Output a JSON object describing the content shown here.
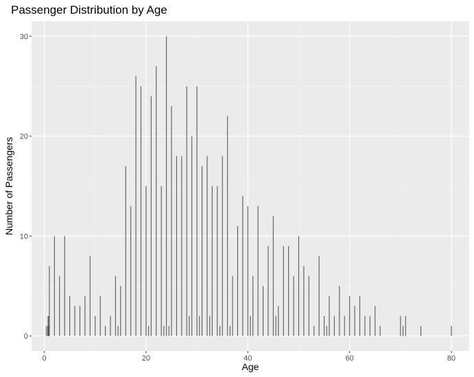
{
  "chart_data": {
    "type": "bar",
    "title": "Passenger Distribution by Age",
    "xlabel": "Age",
    "ylabel": "Number of Passengers",
    "xlim": [
      -2.5,
      83.5
    ],
    "ylim": [
      -1.5,
      31.5
    ],
    "x_ticks": [
      0,
      20,
      40,
      60,
      80
    ],
    "y_ticks": [
      0,
      10,
      20,
      30
    ],
    "grid": true,
    "x": [
      0.42,
      0.67,
      0.75,
      0.83,
      0.92,
      1,
      2,
      3,
      4,
      5,
      6,
      7,
      8,
      9,
      10,
      11,
      12,
      13,
      14,
      14.5,
      15,
      16,
      17,
      18,
      19,
      20,
      20.5,
      21,
      22,
      23,
      23.5,
      24,
      24.5,
      25,
      26,
      27,
      28,
      28.5,
      29,
      30,
      30.5,
      31,
      32,
      32.5,
      33,
      34,
      34.5,
      35,
      36,
      36.5,
      37,
      38,
      39,
      40,
      40.5,
      41,
      42,
      43,
      44,
      45,
      45.5,
      46,
      47,
      48,
      49,
      50,
      51,
      52,
      53,
      54,
      55,
      55.5,
      56,
      57,
      58,
      59,
      60,
      61,
      62,
      63,
      64,
      65,
      66,
      70,
      70.5,
      71,
      74,
      80
    ],
    "values": [
      1,
      1,
      2,
      2,
      1,
      7,
      10,
      6,
      10,
      4,
      3,
      3,
      4,
      8,
      2,
      4,
      1,
      2,
      6,
      1,
      5,
      17,
      13,
      26,
      25,
      15,
      1,
      24,
      27,
      15,
      1,
      30,
      1,
      23,
      18,
      18,
      25,
      2,
      20,
      25,
      2,
      17,
      18,
      2,
      15,
      15,
      1,
      18,
      22,
      1,
      6,
      11,
      14,
      13,
      2,
      6,
      13,
      5,
      9,
      12,
      2,
      3,
      9,
      9,
      6,
      10,
      7,
      6,
      1,
      8,
      2,
      1,
      4,
      2,
      5,
      2,
      4,
      3,
      4,
      2,
      2,
      3,
      1,
      2,
      1,
      2,
      1,
      1
    ]
  }
}
